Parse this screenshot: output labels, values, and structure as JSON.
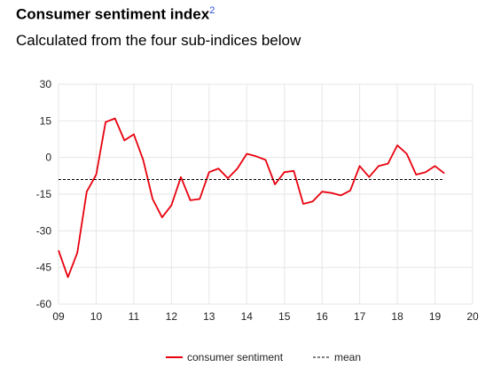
{
  "header": {
    "title": "Consumer sentiment index",
    "footnote": "2",
    "subtitle": "Calculated from the four sub-indices below"
  },
  "chart_data": {
    "type": "line",
    "title": "Consumer sentiment index",
    "subtitle": "Calculated from the four sub-indices below",
    "xlabel": "",
    "ylabel": "",
    "xlim": [
      2009,
      2020
    ],
    "ylim": [
      -60,
      30
    ],
    "x_ticks": [
      2009,
      2010,
      2011,
      2012,
      2013,
      2014,
      2015,
      2016,
      2017,
      2018,
      2019,
      2020
    ],
    "x_tick_labels": [
      "09",
      "10",
      "11",
      "12",
      "13",
      "14",
      "15",
      "16",
      "17",
      "18",
      "19",
      "20"
    ],
    "y_ticks": [
      30,
      15,
      0,
      -15,
      -30,
      -45,
      -60
    ],
    "y_tick_labels": [
      "30",
      "15",
      "0",
      "-15",
      "-30",
      "-45",
      "-60"
    ],
    "grid": true,
    "legend_position": "bottom",
    "colors": {
      "sentiment": "#e8000d",
      "mean": "#000000",
      "grid": "#e6e6e6"
    },
    "series": [
      {
        "name": "consumer sentiment",
        "style": "solid",
        "color": "#e8000d",
        "x": [
          2009.0,
          2009.25,
          2009.5,
          2009.75,
          2010.0,
          2010.25,
          2010.5,
          2010.75,
          2011.0,
          2011.25,
          2011.5,
          2011.75,
          2012.0,
          2012.25,
          2012.5,
          2012.75,
          2013.0,
          2013.25,
          2013.5,
          2013.75,
          2014.0,
          2014.25,
          2014.5,
          2014.75,
          2015.0,
          2015.25,
          2015.5,
          2015.75,
          2016.0,
          2016.25,
          2016.5,
          2016.75,
          2017.0,
          2017.25,
          2017.5,
          2017.75,
          2018.0,
          2018.25,
          2018.5,
          2018.75,
          2019.0,
          2019.25
        ],
        "y": [
          -38,
          -49,
          -39,
          -14,
          -7,
          14.5,
          16,
          7,
          9.5,
          -1,
          -17,
          -24.5,
          -19.5,
          -8,
          -17.5,
          -17,
          -6,
          -4.5,
          -8.5,
          -4.5,
          1.5,
          0.5,
          -1,
          -11,
          -6,
          -5.5,
          -19,
          -18,
          -14,
          -14.5,
          -15.5,
          -13.5,
          -3.5,
          -8,
          -3.5,
          -2.5,
          5,
          1.5,
          -7,
          -6,
          -3.5,
          -6.5
        ]
      },
      {
        "name": "mean",
        "style": "dashed",
        "color": "#000000",
        "x": [
          2009.0,
          2019.25
        ],
        "y": [
          -9,
          -9
        ]
      }
    ]
  }
}
